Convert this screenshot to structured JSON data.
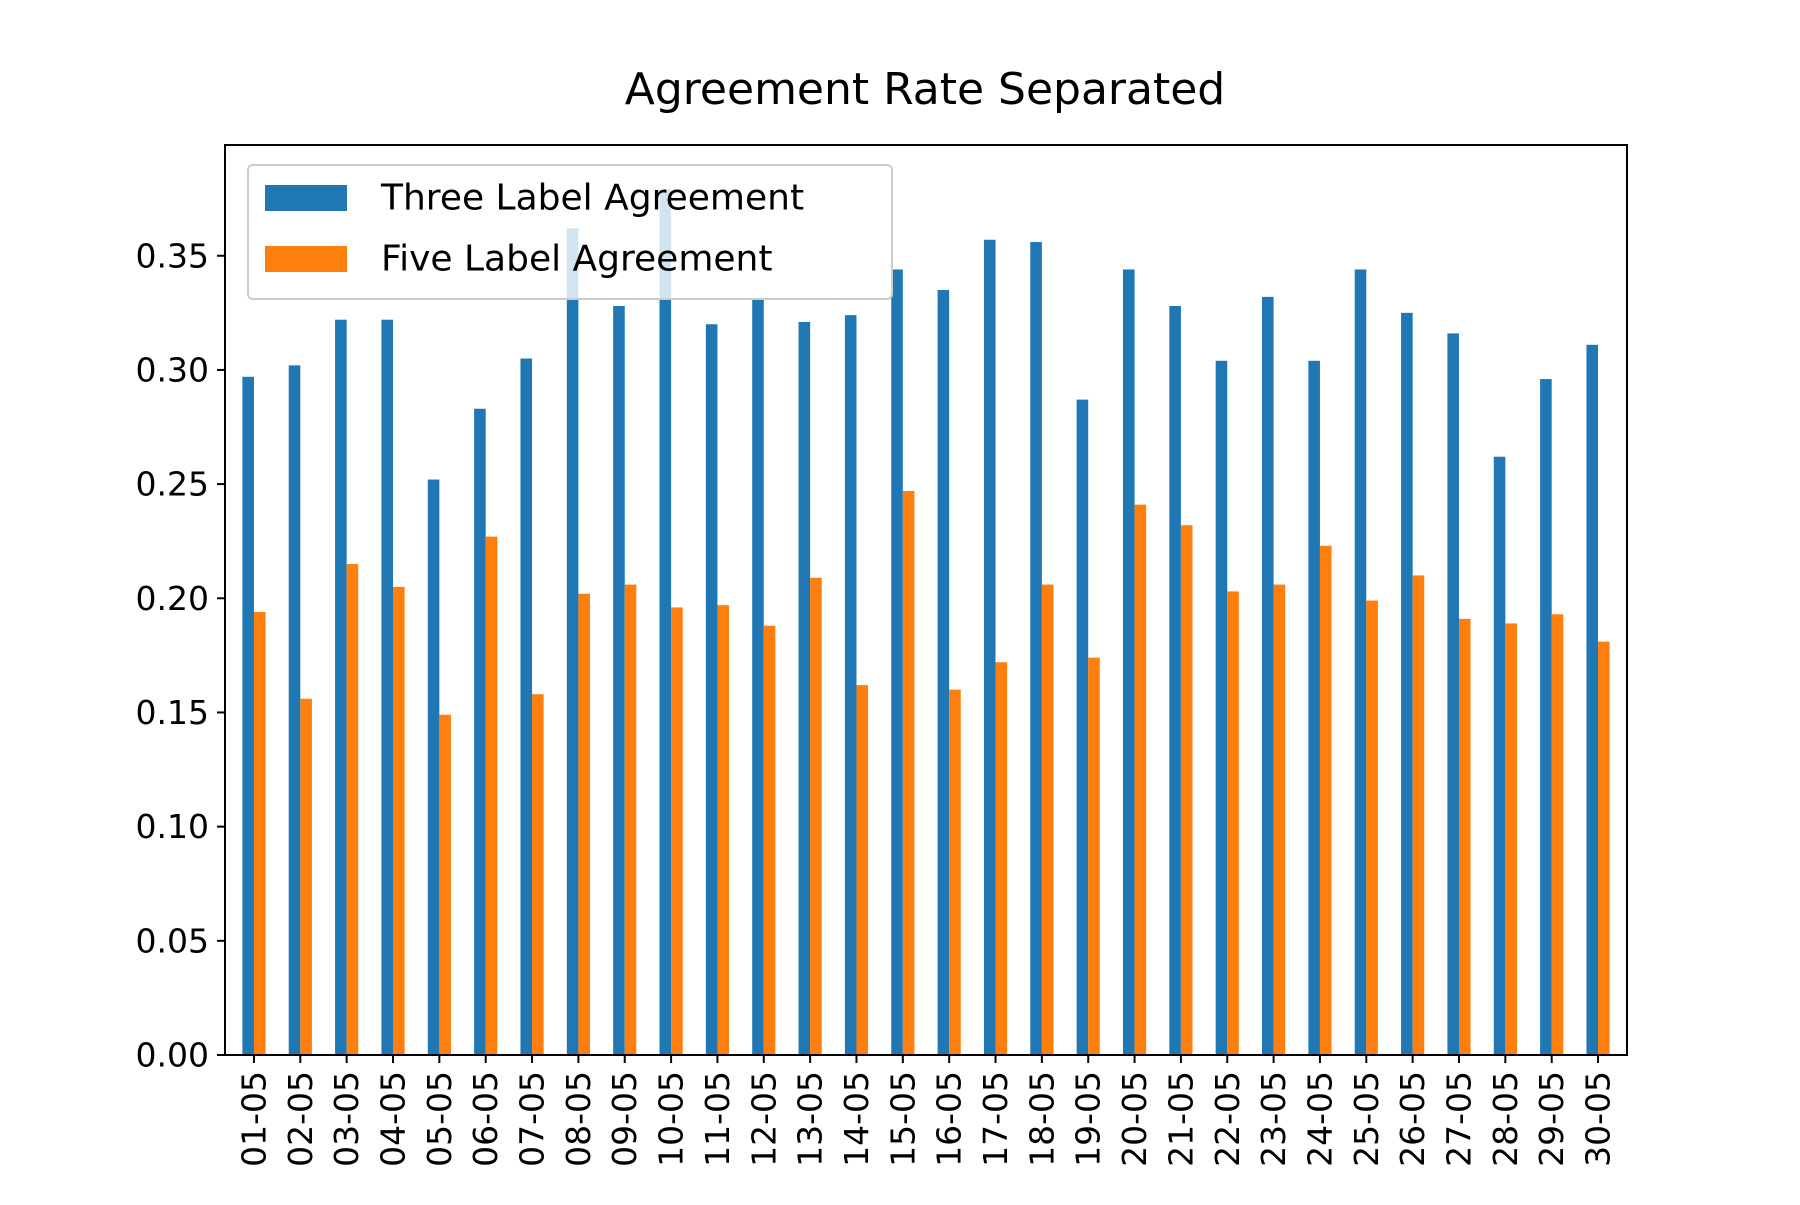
{
  "chart_data": {
    "type": "bar",
    "title": "Agreement Rate Separated",
    "xlabel": "",
    "ylabel": "",
    "ylim": [
      0,
      0.3985
    ],
    "yticks": [
      "0.00",
      "0.05",
      "0.10",
      "0.15",
      "0.20",
      "0.25",
      "0.30",
      "0.35"
    ],
    "categories": [
      "01-05",
      "02-05",
      "03-05",
      "04-05",
      "05-05",
      "06-05",
      "07-05",
      "08-05",
      "09-05",
      "10-05",
      "11-05",
      "12-05",
      "13-05",
      "14-05",
      "15-05",
      "16-05",
      "17-05",
      "18-05",
      "19-05",
      "20-05",
      "21-05",
      "22-05",
      "23-05",
      "24-05",
      "25-05",
      "26-05",
      "27-05",
      "28-05",
      "29-05",
      "30-05"
    ],
    "series": [
      {
        "name": "Three Label Agreement",
        "color": "#1f77b4",
        "values": [
          0.297,
          0.302,
          0.322,
          0.322,
          0.252,
          0.283,
          0.305,
          0.362,
          0.328,
          0.379,
          0.32,
          0.331,
          0.321,
          0.324,
          0.344,
          0.335,
          0.357,
          0.356,
          0.287,
          0.344,
          0.328,
          0.304,
          0.332,
          0.304,
          0.344,
          0.325,
          0.316,
          0.262,
          0.296,
          0.311
        ]
      },
      {
        "name": "Five Label Agreement",
        "color": "#ff7f0e",
        "values": [
          0.194,
          0.156,
          0.215,
          0.205,
          0.149,
          0.227,
          0.158,
          0.202,
          0.206,
          0.196,
          0.197,
          0.188,
          0.209,
          0.162,
          0.247,
          0.16,
          0.172,
          0.206,
          0.174,
          0.241,
          0.232,
          0.203,
          0.206,
          0.223,
          0.199,
          0.21,
          0.191,
          0.189,
          0.193,
          0.181
        ]
      }
    ],
    "grid": false,
    "legend_position": "upper-left"
  }
}
